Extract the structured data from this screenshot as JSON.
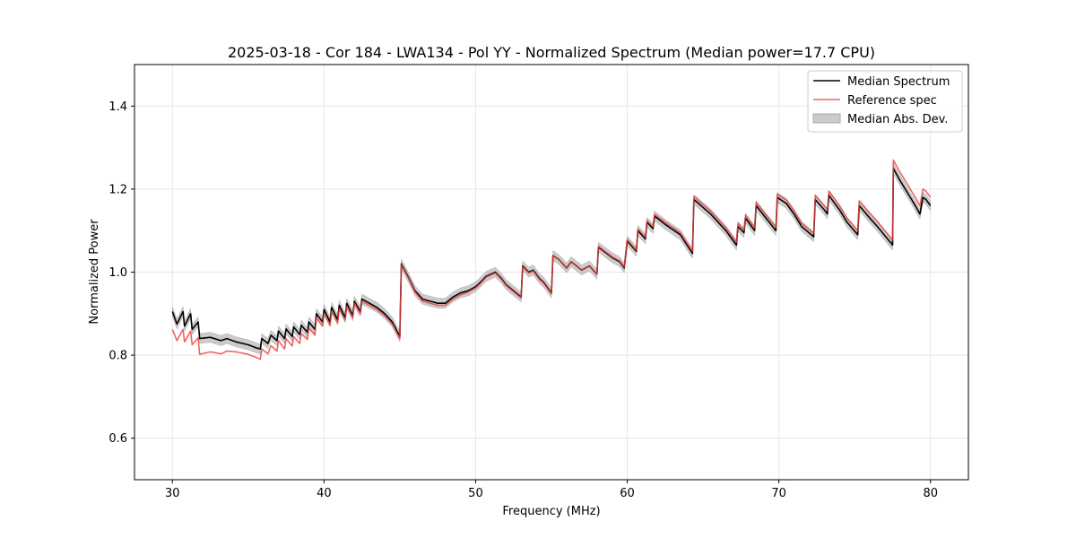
{
  "chart_data": {
    "type": "line",
    "title": "2025-03-18 - Cor 184 - LWA134 - Pol YY - Normalized Spectrum (Median power=17.7 CPU)",
    "xlabel": "Frequency (MHz)",
    "ylabel": "Normalized Power",
    "xlim": [
      27.5,
      82.5
    ],
    "ylim": [
      0.5,
      1.5
    ],
    "xticks": [
      30,
      40,
      50,
      60,
      70,
      80
    ],
    "yticks": [
      0.6,
      0.8,
      1.0,
      1.2,
      1.4
    ],
    "xtick_labels": [
      "30",
      "40",
      "50",
      "60",
      "70",
      "80"
    ],
    "ytick_labels": [
      "0.6",
      "0.8",
      "1.0",
      "1.2",
      "1.4"
    ],
    "grid": true,
    "legend_position": "top-right",
    "legend": [
      "Median Spectrum",
      "Reference spec",
      "Median Abs. Dev."
    ],
    "colors": {
      "median": "#000000",
      "reference": "#e8403c",
      "mad": "#a9a9a9"
    },
    "mad_halfwidth": 0.012,
    "series": [
      {
        "name": "Median Spectrum",
        "x": [
          30.0,
          30.3,
          30.7,
          30.8,
          31.2,
          31.3,
          31.7,
          31.8,
          32.5,
          33.2,
          33.6,
          34.2,
          35.0,
          35.5,
          35.8,
          35.9,
          36.3,
          36.5,
          36.9,
          37.0,
          37.4,
          37.5,
          37.9,
          38.0,
          38.4,
          38.5,
          38.9,
          39.0,
          39.4,
          39.5,
          39.9,
          40.0,
          40.4,
          40.5,
          40.9,
          41.0,
          41.4,
          41.5,
          41.9,
          42.0,
          42.4,
          42.5,
          43.0,
          43.5,
          44.0,
          44.5,
          45.0,
          45.1,
          45.6,
          46.0,
          46.5,
          47.0,
          47.5,
          48.0,
          48.5,
          49.0,
          49.5,
          50.0,
          50.3,
          50.7,
          51.0,
          51.3,
          51.7,
          52.0,
          52.5,
          53.0,
          53.1,
          53.5,
          53.8,
          54.2,
          54.5,
          55.0,
          55.1,
          55.5,
          56.0,
          56.3,
          57.0,
          57.5,
          58.0,
          58.1,
          59.0,
          59.5,
          59.8,
          60.0,
          60.6,
          60.7,
          61.2,
          61.3,
          61.7,
          61.8,
          62.5,
          63.5,
          64.3,
          64.4,
          65.5,
          66.5,
          67.2,
          67.3,
          67.7,
          67.8,
          68.4,
          68.5,
          69.8,
          69.9,
          70.5,
          71.0,
          71.5,
          72.3,
          72.4,
          73.0,
          73.2,
          73.3,
          74.0,
          74.5,
          75.2,
          75.3,
          76.0,
          76.5,
          77.5,
          77.55,
          78.0,
          78.5,
          79.0,
          79.3,
          79.5,
          79.7,
          80.0
        ],
        "values": [
          0.905,
          0.875,
          0.905,
          0.87,
          0.9,
          0.862,
          0.88,
          0.84,
          0.843,
          0.835,
          0.84,
          0.832,
          0.825,
          0.818,
          0.815,
          0.84,
          0.828,
          0.848,
          0.835,
          0.858,
          0.84,
          0.863,
          0.845,
          0.868,
          0.85,
          0.872,
          0.855,
          0.88,
          0.862,
          0.9,
          0.88,
          0.91,
          0.88,
          0.915,
          0.885,
          0.92,
          0.89,
          0.925,
          0.895,
          0.93,
          0.905,
          0.935,
          0.925,
          0.915,
          0.9,
          0.88,
          0.845,
          1.02,
          0.985,
          0.955,
          0.935,
          0.93,
          0.925,
          0.925,
          0.94,
          0.95,
          0.955,
          0.965,
          0.975,
          0.99,
          0.995,
          1.0,
          0.985,
          0.97,
          0.955,
          0.94,
          1.015,
          1.0,
          1.005,
          0.985,
          0.975,
          0.95,
          1.04,
          1.03,
          1.01,
          1.025,
          1.005,
          1.015,
          0.995,
          1.06,
          1.035,
          1.025,
          1.01,
          1.075,
          1.05,
          1.1,
          1.08,
          1.12,
          1.105,
          1.135,
          1.115,
          1.09,
          1.045,
          1.175,
          1.14,
          1.1,
          1.065,
          1.11,
          1.095,
          1.13,
          1.1,
          1.16,
          1.1,
          1.18,
          1.165,
          1.14,
          1.11,
          1.085,
          1.175,
          1.15,
          1.14,
          1.185,
          1.15,
          1.12,
          1.09,
          1.16,
          1.13,
          1.11,
          1.065,
          1.25,
          1.22,
          1.19,
          1.16,
          1.14,
          1.18,
          1.175,
          1.16
        ]
      },
      {
        "name": "Reference spec",
        "x": [
          30.0,
          30.3,
          30.7,
          30.8,
          31.2,
          31.3,
          31.7,
          31.8,
          32.5,
          33.2,
          33.6,
          34.2,
          35.0,
          35.5,
          35.8,
          35.9,
          36.3,
          36.5,
          36.9,
          37.0,
          37.4,
          37.5,
          37.9,
          38.0,
          38.4,
          38.5,
          38.9,
          39.0,
          39.4,
          39.5,
          39.9,
          40.0,
          40.4,
          40.5,
          40.9,
          41.0,
          41.4,
          41.5,
          41.9,
          42.0,
          42.4,
          42.5,
          43.0,
          43.5,
          44.0,
          44.5,
          45.0,
          45.1,
          45.6,
          46.0,
          46.5,
          47.0,
          47.5,
          48.0,
          48.5,
          49.0,
          49.5,
          50.0,
          50.3,
          50.7,
          51.0,
          51.3,
          51.7,
          52.0,
          52.5,
          53.0,
          53.1,
          53.5,
          53.8,
          54.2,
          54.5,
          55.0,
          55.1,
          55.5,
          56.0,
          56.3,
          57.0,
          57.5,
          58.0,
          58.1,
          59.0,
          59.5,
          59.8,
          60.0,
          60.6,
          60.7,
          61.2,
          61.3,
          61.7,
          61.8,
          62.5,
          63.5,
          64.3,
          64.4,
          65.5,
          66.5,
          67.2,
          67.3,
          67.7,
          67.8,
          68.4,
          68.5,
          69.8,
          69.9,
          70.5,
          71.0,
          71.5,
          72.3,
          72.4,
          73.0,
          73.2,
          73.3,
          74.0,
          74.5,
          75.2,
          75.3,
          76.0,
          76.5,
          77.5,
          77.55,
          78.0,
          78.5,
          79.0,
          79.3,
          79.5,
          79.7,
          80.0
        ],
        "values": [
          0.862,
          0.835,
          0.862,
          0.832,
          0.858,
          0.825,
          0.842,
          0.802,
          0.808,
          0.803,
          0.81,
          0.808,
          0.802,
          0.795,
          0.79,
          0.815,
          0.803,
          0.823,
          0.81,
          0.835,
          0.815,
          0.84,
          0.822,
          0.845,
          0.828,
          0.852,
          0.838,
          0.865,
          0.848,
          0.89,
          0.87,
          0.9,
          0.872,
          0.905,
          0.878,
          0.912,
          0.884,
          0.918,
          0.89,
          0.925,
          0.9,
          0.93,
          0.92,
          0.91,
          0.895,
          0.875,
          0.84,
          1.018,
          0.983,
          0.952,
          0.93,
          0.925,
          0.92,
          0.92,
          0.935,
          0.945,
          0.952,
          0.962,
          0.972,
          0.988,
          0.993,
          0.998,
          0.983,
          0.968,
          0.953,
          0.938,
          1.013,
          0.998,
          1.003,
          0.983,
          0.973,
          0.948,
          1.04,
          1.03,
          1.01,
          1.025,
          1.005,
          1.015,
          0.995,
          1.062,
          1.037,
          1.027,
          1.012,
          1.078,
          1.053,
          1.104,
          1.084,
          1.124,
          1.109,
          1.139,
          1.12,
          1.095,
          1.05,
          1.182,
          1.147,
          1.107,
          1.072,
          1.117,
          1.102,
          1.137,
          1.107,
          1.168,
          1.108,
          1.188,
          1.173,
          1.148,
          1.118,
          1.093,
          1.185,
          1.16,
          1.15,
          1.195,
          1.16,
          1.13,
          1.1,
          1.172,
          1.142,
          1.122,
          1.077,
          1.27,
          1.24,
          1.21,
          1.18,
          1.16,
          1.2,
          1.195,
          1.18
        ]
      }
    ]
  }
}
